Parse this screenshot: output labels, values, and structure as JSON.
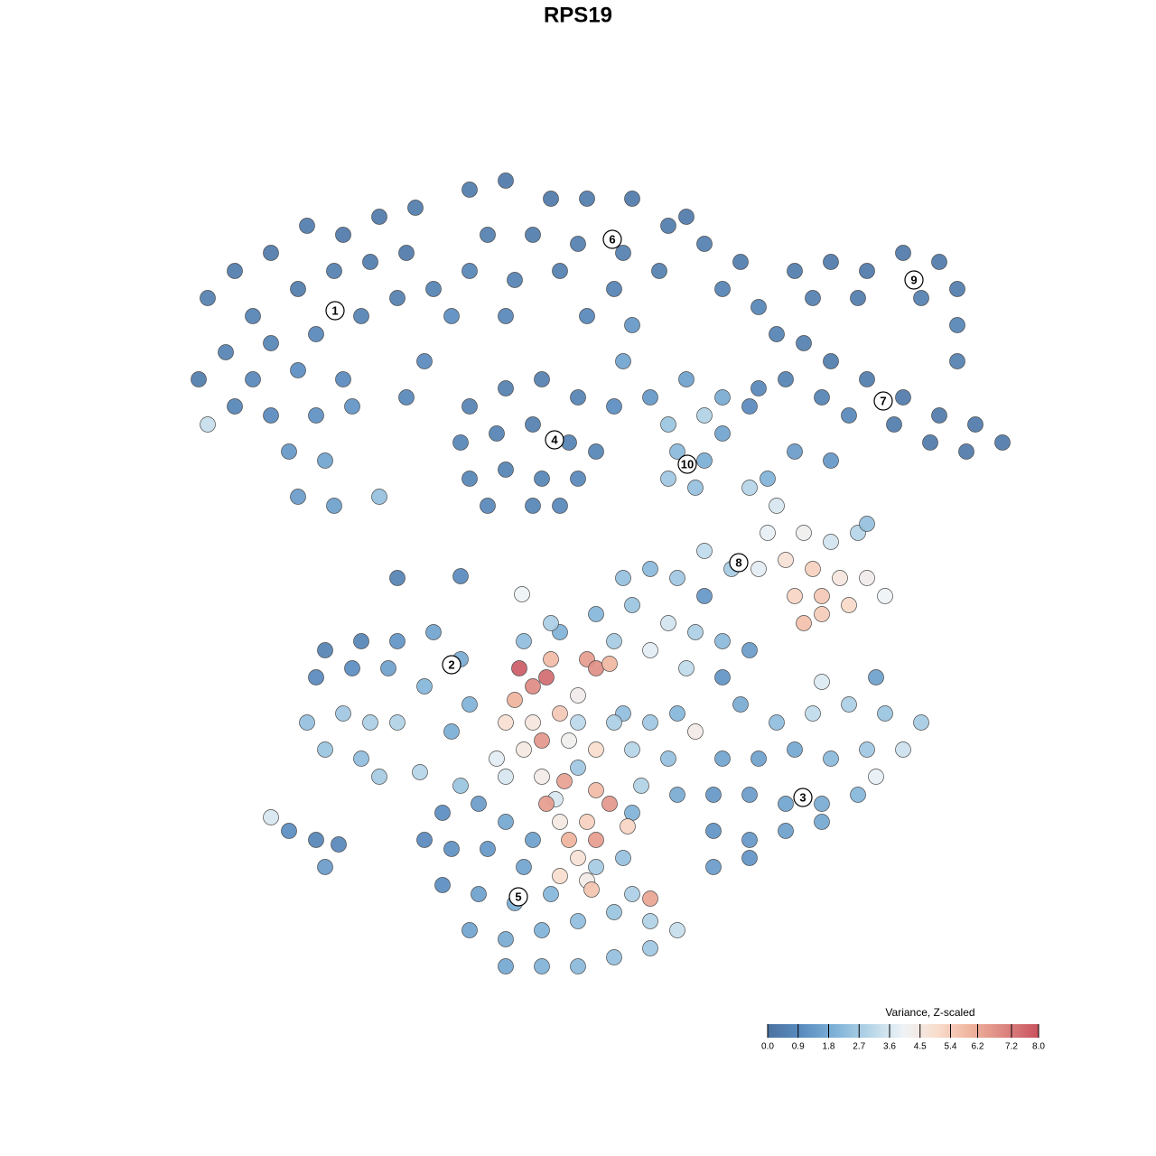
{
  "chart_data": {
    "type": "scatter",
    "title": "RPS19",
    "xlim": [
      -64,
      64
    ],
    "ylim": [
      -64,
      64
    ],
    "x": [
      -41,
      -38,
      -34,
      -30,
      -26,
      -22,
      -36,
      -31,
      -27,
      -23,
      -19,
      -39,
      -34,
      -29,
      -24,
      -20,
      -42,
      -36,
      -31,
      -26,
      -34,
      -29,
      -25,
      -32,
      -28,
      -31,
      -27,
      -41,
      -22,
      -16,
      -14,
      -17,
      -19,
      -38,
      -12,
      -8,
      -3,
      1,
      6,
      10,
      14,
      18,
      -10,
      -5,
      0,
      5,
      -12,
      -7,
      -2,
      4,
      9,
      16,
      20,
      -8,
      1,
      6,
      5,
      12,
      -18,
      -12,
      -8,
      -4,
      0,
      -13,
      -9,
      -5,
      -1,
      2,
      -12,
      -8,
      -4,
      0,
      -10,
      -5,
      -2,
      24,
      28,
      32,
      36,
      40,
      42,
      26,
      31,
      38,
      42,
      42,
      22,
      25,
      28,
      32,
      36,
      40,
      44,
      47,
      23,
      27,
      30,
      35,
      39,
      43,
      20,
      24,
      28,
      4,
      8,
      12,
      16,
      10,
      14,
      11,
      14,
      10,
      13,
      16,
      19,
      19,
      22,
      21,
      25,
      28,
      31,
      32,
      23,
      26,
      29,
      32,
      34,
      24,
      27,
      30,
      25,
      27,
      14,
      17,
      20,
      21,
      5,
      8,
      11,
      14,
      2,
      6,
      10,
      13,
      16,
      -2,
      4,
      8,
      12,
      16,
      19,
      -6,
      -3,
      5,
      8,
      11,
      6,
      10,
      7,
      11,
      6,
      4,
      0,
      13,
      -28,
      -24,
      -20,
      -16,
      -13,
      -29,
      -25,
      -21,
      -17,
      -30,
      -26,
      -23,
      -20,
      -28,
      -24,
      -22,
      -12,
      -14,
      -17.5,
      -34,
      -32,
      -29,
      -26.5,
      -28,
      -20,
      -13,
      -6.2,
      18,
      22,
      26,
      30,
      34,
      38,
      16,
      20,
      24,
      28,
      32,
      36,
      15,
      19,
      23,
      27,
      31,
      15,
      19,
      23,
      27,
      15,
      19,
      27,
      33,
      33,
      -15,
      -11,
      -8,
      -5,
      -14,
      -10,
      -6,
      -15,
      -11,
      -7,
      -3,
      -12,
      -8,
      -4,
      0,
      4,
      8,
      -8,
      -4,
      0,
      4,
      8,
      11,
      2,
      5,
      6,
      -13,
      -17,
      -2.5,
      -6.5,
      -5,
      -3.5,
      -3,
      -7,
      -8,
      -5,
      -2,
      0,
      1,
      2,
      3.5,
      -6,
      -4,
      -1,
      2,
      -9,
      -8,
      -4,
      -1.5,
      2,
      3.5,
      0,
      -2,
      -1,
      1,
      2,
      0,
      -2,
      1,
      1.5,
      5.5,
      8,
      -3.5
    ],
    "y": [
      31,
      34,
      36,
      39,
      38,
      40,
      29,
      32,
      34,
      35,
      36,
      25,
      26,
      27,
      29,
      31,
      22,
      22,
      23,
      22,
      18,
      18,
      19,
      14,
      13,
      9,
      8,
      17,
      9,
      32,
      29,
      24,
      20,
      19,
      43,
      44,
      42,
      42,
      42,
      39,
      37,
      35,
      38,
      38,
      37,
      36,
      34,
      33,
      34,
      32,
      34,
      32,
      30,
      29,
      29,
      28,
      24,
      40,
      41,
      19,
      21,
      22,
      20,
      15,
      16,
      17,
      15,
      14,
      11,
      12,
      11,
      11,
      8,
      8,
      8,
      34,
      35,
      34,
      36,
      35,
      32,
      31,
      31,
      31,
      28,
      24,
      27,
      26,
      24,
      22,
      20,
      18,
      17,
      15,
      22,
      20,
      18,
      17,
      15,
      14,
      21,
      14,
      13,
      19,
      20,
      22,
      20,
      17,
      18,
      14,
      13,
      11,
      10,
      16,
      19,
      10,
      8,
      5,
      5,
      4,
      5,
      6,
      2,
      1,
      0,
      0,
      -2,
      -2,
      -2,
      -3,
      -5,
      -4,
      3,
      1,
      1,
      11,
      0,
      1,
      0,
      -2,
      -4,
      -3,
      -5,
      -6,
      -7,
      -6,
      -7,
      -8,
      -10,
      -11,
      -8,
      -7,
      -5,
      -15,
      -16,
      -15,
      -19,
      -20,
      -23,
      -24,
      -26,
      -16,
      -16,
      -17,
      -8,
      -7,
      -7,
      -6,
      -9,
      -11,
      -10,
      -10,
      -12,
      -16,
      -15,
      -16,
      -16,
      -19,
      -20,
      -22,
      -14,
      -17,
      -21.5,
      -26.5,
      -28,
      -29,
      -29.5,
      -32,
      0,
      0.2,
      -1.8,
      -14,
      -16,
      -15,
      -14,
      -15,
      -16,
      -20,
      -20,
      -19,
      -20,
      -19,
      -19,
      -24,
      -24,
      -25,
      -25,
      -24,
      -28,
      -29,
      -28,
      -27,
      -32,
      -31,
      -11.5,
      -11,
      -22,
      -26,
      -25,
      -27,
      -29,
      -30,
      -30,
      -32,
      -34,
      -35,
      -36,
      -35,
      -39,
      -40,
      -39,
      -38,
      -37,
      -38,
      -43,
      -43,
      -43,
      -42,
      -41,
      -39,
      -32,
      -31,
      -35,
      -23,
      -29,
      -24.5,
      -10,
      -12,
      -11,
      -9,
      -13.5,
      -16,
      -16,
      -15,
      -13,
      -9,
      -10,
      -9.5,
      -19,
      -18,
      -18,
      -19,
      -20,
      -22,
      -22,
      -22.5,
      -23.5,
      -25,
      -21,
      -27,
      -29,
      -27,
      -29,
      -31,
      -33,
      -33.5,
      -34.5,
      -27.5,
      -35.5,
      -25
    ],
    "values": [
      0.5,
      0.4,
      0.3,
      0.4,
      0.3,
      0.3,
      0.6,
      0.4,
      0.5,
      0.4,
      0.3,
      0.6,
      0.7,
      0.8,
      0.6,
      0.5,
      0.4,
      0.8,
      1.0,
      0.9,
      0.9,
      1.1,
      1.2,
      1.3,
      1.6,
      1.4,
      1.5,
      3.3,
      2.4,
      0.6,
      1.0,
      0.9,
      0.8,
      0.7,
      0.4,
      0.3,
      0.3,
      0.4,
      0.3,
      0.4,
      0.5,
      0.4,
      0.5,
      0.4,
      0.5,
      0.5,
      0.7,
      0.6,
      0.5,
      0.6,
      0.5,
      0.6,
      0.7,
      0.8,
      0.8,
      1.3,
      1.6,
      0.3,
      0.4,
      0.6,
      0.5,
      0.5,
      0.6,
      0.7,
      0.6,
      0.5,
      0.6,
      0.7,
      0.7,
      0.6,
      0.7,
      0.8,
      0.8,
      0.7,
      0.8,
      0.4,
      0.3,
      0.3,
      0.3,
      0.3,
      0.4,
      0.5,
      0.4,
      0.5,
      0.7,
      0.5,
      0.6,
      0.5,
      0.4,
      0.4,
      0.3,
      0.3,
      0.3,
      0.3,
      0.6,
      0.6,
      0.8,
      0.4,
      0.3,
      0.3,
      0.8,
      1.4,
      1.3,
      1.0,
      1.3,
      1.5,
      1.8,
      2.5,
      2.9,
      2.2,
      1.9,
      2.6,
      2.4,
      1.6,
      0.9,
      3.0,
      3.6,
      3.9,
      4.2,
      3.5,
      3.0,
      2.4,
      4.8,
      5.3,
      4.6,
      4.3,
      4.0,
      5.2,
      5.5,
      5.1,
      5.7,
      5.4,
      3.2,
      2.7,
      3.8,
      2.0,
      2.4,
      2.2,
      2.6,
      1.3,
      2.1,
      2.5,
      3.5,
      2.8,
      2.2,
      2.0,
      2.7,
      3.8,
      3.2,
      1.2,
      1.4,
      2.3,
      2.8,
      2.3,
      2.6,
      2.1,
      3.0,
      2.4,
      2.9,
      1.8,
      2.0,
      2.8,
      3.1,
      4.4,
      0.6,
      0.7,
      1.2,
      1.6,
      1.8,
      0.9,
      1.0,
      1.5,
      2.1,
      2.4,
      2.6,
      2.8,
      2.9,
      2.5,
      2.3,
      2.7,
      2.0,
      1.9,
      3.0,
      3.6,
      1.0,
      0.7,
      0.8,
      1.4,
      0.6,
      0.9,
      4.0,
      1.8,
      2.3,
      3.2,
      2.8,
      2.5,
      2.7,
      1.6,
      1.5,
      1.7,
      2.2,
      2.6,
      3.4,
      1.3,
      1.4,
      1.6,
      1.8,
      2.1,
      1.2,
      1.3,
      1.5,
      1.7,
      1.4,
      1.2,
      3.7,
      1.5,
      3.9,
      1.0,
      1.4,
      1.7,
      1.5,
      1.1,
      1.3,
      1.6,
      1.0,
      1.5,
      1.9,
      2.1,
      1.6,
      1.8,
      2.0,
      2.3,
      2.5,
      2.9,
      1.7,
      2.0,
      2.2,
      2.4,
      2.6,
      3.3,
      2.7,
      2.4,
      2.8,
      2.5,
      0.9,
      3.6,
      7.8,
      6.9,
      7.5,
      5.8,
      6.0,
      4.9,
      4.6,
      5.5,
      4.3,
      6.5,
      6.8,
      5.9,
      4.5,
      6.6,
      4.2,
      5.0,
      3.8,
      3.6,
      4.4,
      6.4,
      5.8,
      6.6,
      2.6,
      4.5,
      6.0,
      5.3,
      6.5,
      4.8,
      5.0,
      4.4,
      5.6,
      5.2,
      6.3,
      6.5
    ],
    "cluster_labels": {
      "labels": [
        "1",
        "6",
        "4",
        "9",
        "7",
        "10",
        "8",
        "2",
        "3",
        "5"
      ],
      "x": [
        -26.9,
        3.8,
        -2.6,
        37.2,
        33.8,
        12.1,
        17.8,
        -14,
        24.9,
        -6.6
      ],
      "y": [
        29.6,
        37.5,
        15.3,
        33,
        19.6,
        12.6,
        1.7,
        -9.6,
        -24.3,
        -35.3
      ]
    },
    "colorbar": {
      "title": "Variance, Z-scaled",
      "lim": [
        0,
        8
      ],
      "ticks": [
        {
          "value": 0,
          "label": "0.0"
        },
        0.9,
        1.8,
        2.7,
        3.6,
        4.5,
        5.4,
        6.2,
        7.2,
        {
          "value": 8,
          "label": "8.0"
        }
      ],
      "colors": [
        "#4a72a0",
        "#5a8cc0",
        "#7fb2d8",
        "#b5d5e8",
        "#eef3f6",
        "#f9ddcd",
        "#efb39c",
        "#dc8580",
        "#c9525f"
      ]
    }
  }
}
